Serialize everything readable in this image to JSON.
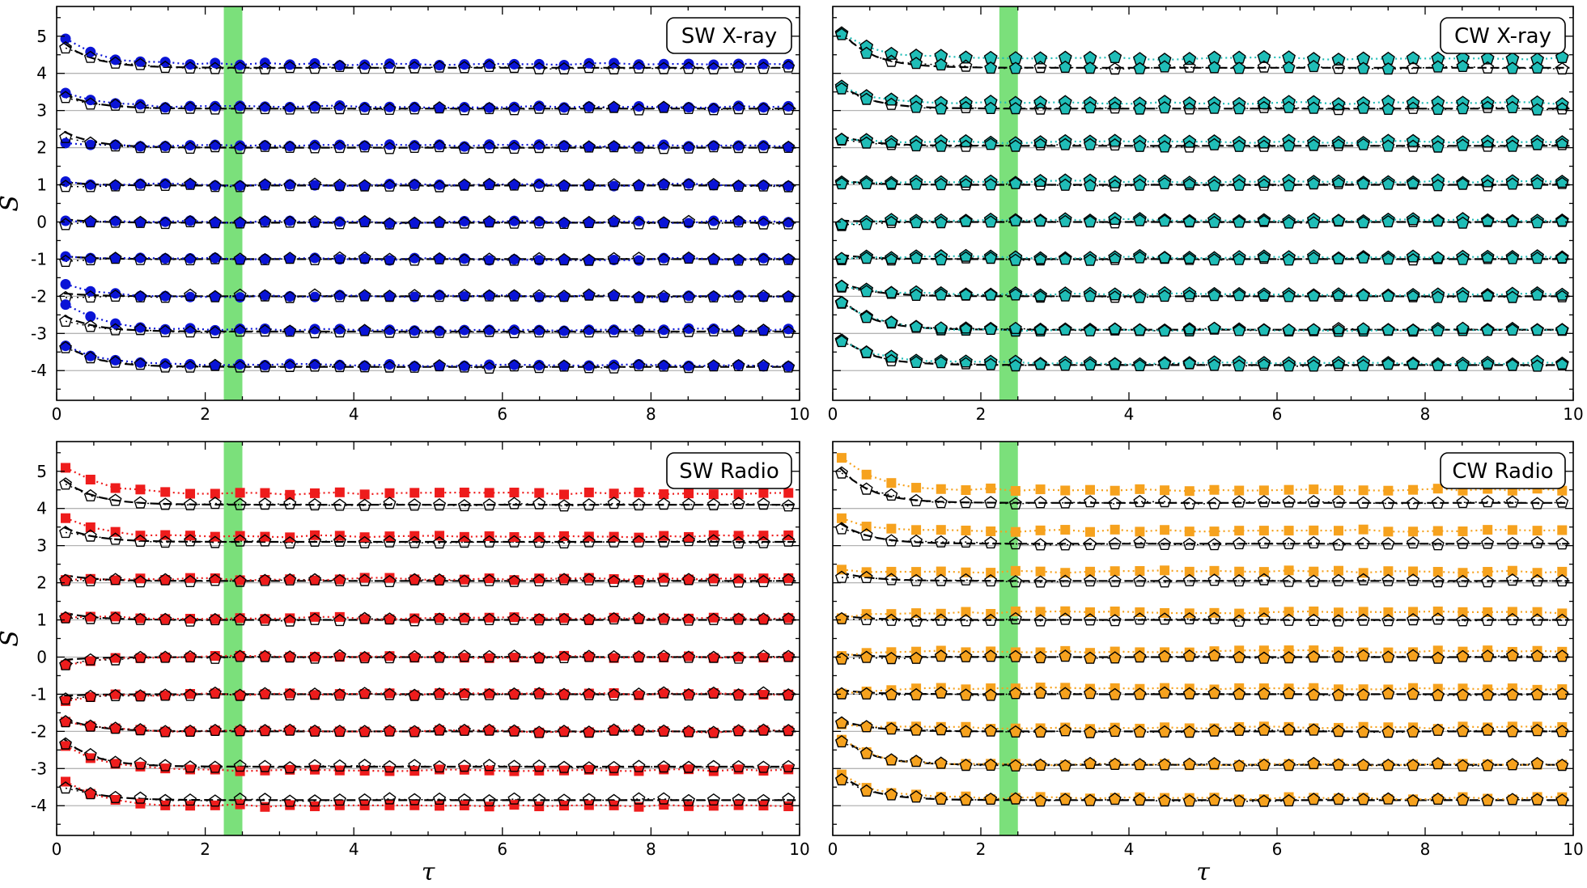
{
  "chart_data": [
    {
      "type": "scatter",
      "panel_id": "sw-xray",
      "label": "SW X-ray",
      "color": "#0a14d6",
      "marker": "circle",
      "xlabel": "τ",
      "ylabel": "S",
      "xlim": [
        0,
        10
      ],
      "ylim": [
        -4.8,
        5.8
      ],
      "xticks": [
        "0",
        "2",
        "4",
        "6",
        "8",
        "10"
      ],
      "yticks": [
        "-4",
        "-3",
        "-2",
        "-1",
        "0",
        "1",
        "2",
        "3",
        "4",
        "5"
      ],
      "shaded_band_x": [
        2.25,
        2.5
      ],
      "levels": [
        4,
        3,
        2,
        1,
        0,
        -1,
        -2,
        -3,
        -4
      ],
      "series": [
        {
          "name": "level 4",
          "filled_start": 5.1,
          "filled_end": 4.25,
          "open_start": 4.85,
          "open_end": 4.15
        },
        {
          "name": "level 3",
          "filled_start": 3.6,
          "filled_end": 3.1,
          "open_start": 3.4,
          "open_end": 3.05
        },
        {
          "name": "level 2",
          "filled_start": 2.15,
          "filled_end": 2.05,
          "open_start": 2.4,
          "open_end": 2.0
        },
        {
          "name": "level 1",
          "filled_start": 1.1,
          "filled_end": 1.0,
          "open_start": 0.95,
          "open_end": 0.98
        },
        {
          "name": "level 0",
          "filled_start": 0.05,
          "filled_end": 0.0,
          "open_start": -0.05,
          "open_end": -0.02
        },
        {
          "name": "level -1",
          "filled_start": -0.95,
          "filled_end": -1.0,
          "open_start": -1.05,
          "open_end": -1.0
        },
        {
          "name": "level -2",
          "filled_start": -1.55,
          "filled_end": -2.0,
          "open_start": -2.05,
          "open_end": -2.0
        },
        {
          "name": "level -3",
          "filled_start": -2.0,
          "filled_end": -2.9,
          "open_start": -2.55,
          "open_end": -2.95
        },
        {
          "name": "level -4",
          "filled_start": -3.15,
          "filled_end": -3.85,
          "open_start": -3.25,
          "open_end": -3.9
        }
      ]
    },
    {
      "type": "scatter",
      "panel_id": "cw-xray",
      "label": "CW X-ray",
      "color": "#20bdb7",
      "marker": "pentagon",
      "xlabel": "τ",
      "ylabel": "",
      "xlim": [
        0,
        10
      ],
      "ylim": [
        -4.8,
        5.8
      ],
      "xticks": [
        "0",
        "2",
        "4",
        "6",
        "8",
        "10"
      ],
      "yticks": [],
      "shaded_band_x": [
        2.25,
        2.5
      ],
      "levels": [
        4,
        3,
        2,
        1,
        0,
        -1,
        -2,
        -3,
        -4
      ],
      "series": [
        {
          "name": "level 4",
          "filled_start": 5.3,
          "filled_end": 4.4,
          "open_start": 5.3,
          "open_end": 4.15
        },
        {
          "name": "level 3",
          "filled_start": 3.75,
          "filled_end": 3.2,
          "open_start": 3.75,
          "open_end": 3.05
        },
        {
          "name": "level 2",
          "filled_start": 2.25,
          "filled_end": 2.15,
          "open_start": 2.25,
          "open_end": 2.05
        },
        {
          "name": "level 1",
          "filled_start": 1.05,
          "filled_end": 1.08,
          "open_start": 1.0,
          "open_end": 1.0
        },
        {
          "name": "level 0",
          "filled_start": -0.1,
          "filled_end": 0.05,
          "open_start": -0.1,
          "open_end": 0.0
        },
        {
          "name": "level -1",
          "filled_start": -1.0,
          "filled_end": -0.95,
          "open_start": -1.0,
          "open_end": -1.0
        },
        {
          "name": "level -2",
          "filled_start": -1.65,
          "filled_end": -1.95,
          "open_start": -1.65,
          "open_end": -2.0
        },
        {
          "name": "level -3",
          "filled_start": -1.95,
          "filled_end": -2.9,
          "open_start": -1.95,
          "open_end": -2.9
        },
        {
          "name": "level -4",
          "filled_start": -3.0,
          "filled_end": -3.8,
          "open_start": -3.0,
          "open_end": -3.85
        }
      ]
    },
    {
      "type": "scatter",
      "panel_id": "sw-radio",
      "label": "SW Radio",
      "color": "#ee1c1c",
      "marker": "square",
      "xlabel": "τ",
      "ylabel": "S",
      "xlim": [
        0,
        10
      ],
      "ylim": [
        -4.8,
        5.8
      ],
      "xticks": [
        "0",
        "2",
        "4",
        "6",
        "8",
        "10"
      ],
      "yticks": [
        "-4",
        "-3",
        "-2",
        "-1",
        "0",
        "1",
        "2",
        "3",
        "4",
        "5"
      ],
      "shaded_band_x": [
        2.25,
        2.5
      ],
      "levels": [
        4,
        3,
        2,
        1,
        0,
        -1,
        -2,
        -3,
        -4
      ],
      "series": [
        {
          "name": "level 4",
          "filled_start": 5.35,
          "filled_end": 4.4,
          "open_start": 4.8,
          "open_end": 4.1
        },
        {
          "name": "level 3",
          "filled_start": 3.9,
          "filled_end": 3.25,
          "open_start": 3.45,
          "open_end": 3.1
        },
        {
          "name": "level 2",
          "filled_start": 2.05,
          "filled_end": 2.1,
          "open_start": 2.1,
          "open_end": 2.05
        },
        {
          "name": "level 1",
          "filled_start": 1.1,
          "filled_end": 1.05,
          "open_start": 1.1,
          "open_end": 1.0
        },
        {
          "name": "level 0",
          "filled_start": -0.25,
          "filled_end": 0.0,
          "open_start": -0.25,
          "open_end": 0.0
        },
        {
          "name": "level -1",
          "filled_start": -1.2,
          "filled_end": -1.0,
          "open_start": -1.2,
          "open_end": -1.0
        },
        {
          "name": "level -2",
          "filled_start": -1.7,
          "filled_end": -2.0,
          "open_start": -1.7,
          "open_end": -2.0
        },
        {
          "name": "level -3",
          "filled_start": -2.15,
          "filled_end": -3.05,
          "open_start": -2.15,
          "open_end": -2.95
        },
        {
          "name": "level -4",
          "filled_start": -3.2,
          "filled_end": -4.0,
          "open_start": -3.4,
          "open_end": -3.85
        }
      ]
    },
    {
      "type": "scatter",
      "panel_id": "cw-radio",
      "label": "CW Radio",
      "color": "#f6a21e",
      "marker": "square",
      "xlabel": "τ",
      "ylabel": "",
      "xlim": [
        0,
        10
      ],
      "ylim": [
        -4.8,
        5.8
      ],
      "xticks": [
        "0",
        "2",
        "4",
        "6",
        "8",
        "10"
      ],
      "yticks": [],
      "shaded_band_x": [
        2.25,
        2.5
      ],
      "levels": [
        4,
        3,
        2,
        1,
        0,
        -1,
        -2,
        -3,
        -4
      ],
      "series": [
        {
          "name": "level 4",
          "filled_start": 5.6,
          "filled_end": 4.5,
          "open_start": 5.2,
          "open_end": 4.15
        },
        {
          "name": "level 3",
          "filled_start": 3.8,
          "filled_end": 3.4,
          "open_start": 3.6,
          "open_end": 3.05
        },
        {
          "name": "level 2",
          "filled_start": 2.35,
          "filled_end": 2.3,
          "open_start": 2.2,
          "open_end": 2.05
        },
        {
          "name": "level 1",
          "filled_start": 1.0,
          "filled_end": 1.2,
          "open_start": 1.0,
          "open_end": 1.0
        },
        {
          "name": "level 0",
          "filled_start": -0.05,
          "filled_end": 0.15,
          "open_start": -0.05,
          "open_end": 0.0
        },
        {
          "name": "level -1",
          "filled_start": -1.0,
          "filled_end": -0.85,
          "open_start": -1.0,
          "open_end": -1.0
        },
        {
          "name": "level -2",
          "filled_start": -1.75,
          "filled_end": -1.9,
          "open_start": -1.75,
          "open_end": -2.0
        },
        {
          "name": "level -3",
          "filled_start": -2.05,
          "filled_end": -2.9,
          "open_start": -2.05,
          "open_end": -2.9
        },
        {
          "name": "level -4",
          "filled_start": -3.0,
          "filled_end": -3.8,
          "open_start": -3.1,
          "open_end": -3.85
        }
      ]
    }
  ],
  "colors": {
    "band": "#7be07b",
    "gridline": "#b4b4b4",
    "fit_line": "#000000",
    "open_marker_stroke": "#000000"
  }
}
